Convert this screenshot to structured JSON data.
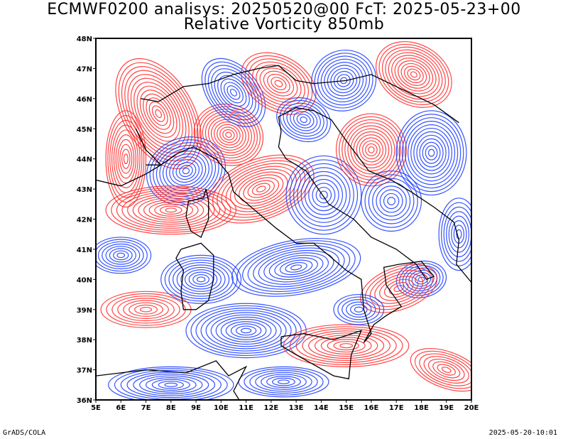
{
  "title_line1": "ECMWF0200 analisys: 20250520@00 FcT: 2025-05-23+00",
  "title_line2": "Relative Vorticity 850mb",
  "footer_left": "GrADS/COLA",
  "footer_right": "2025-05-20-10:01",
  "map": {
    "projection": "lat-lon",
    "lon_range": [
      5,
      20
    ],
    "lat_range": [
      36,
      48
    ],
    "lon_ticks": [
      "5E",
      "6E",
      "7E",
      "8E",
      "9E",
      "10E",
      "11E",
      "12E",
      "13E",
      "14E",
      "15E",
      "16E",
      "17E",
      "18E",
      "19E",
      "20E"
    ],
    "lat_ticks": [
      "36N",
      "37N",
      "38N",
      "39N",
      "40N",
      "41N",
      "42N",
      "43N",
      "44N",
      "45N",
      "46N",
      "47N",
      "48N"
    ],
    "colors": {
      "positive_vorticity": "#ff3030",
      "negative_vorticity": "#2040ff",
      "coastline": "#000000"
    }
  }
}
